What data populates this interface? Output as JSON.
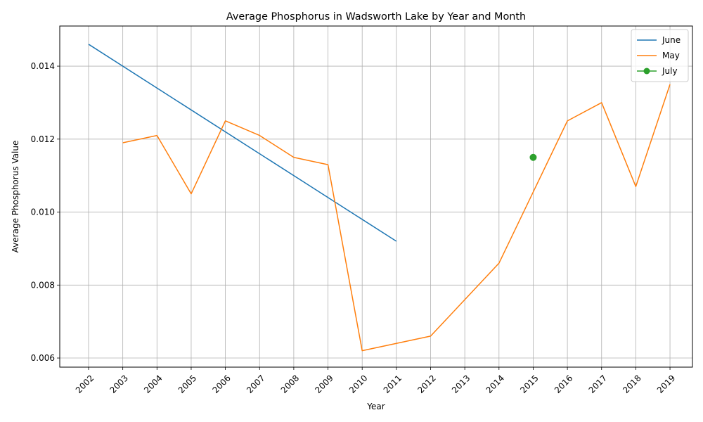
{
  "chart_data": {
    "type": "line",
    "title": "Average Phosphorus in Wadsworth Lake by Year and Month",
    "xlabel": "Year",
    "ylabel": "Average Phosphorus Value",
    "x_categories": [
      "2002",
      "2003",
      "2004",
      "2005",
      "2006",
      "2007",
      "2008",
      "2009",
      "2010",
      "2011",
      "2012",
      "2013",
      "2014",
      "2015",
      "2016",
      "2017",
      "2018",
      "2019"
    ],
    "ylim": [
      0.00575,
      0.0151
    ],
    "yticks": [
      "0.006",
      "0.008",
      "0.010",
      "0.012",
      "0.014"
    ],
    "ytick_values": [
      0.006,
      0.008,
      0.01,
      0.012,
      0.014
    ],
    "grid": true,
    "legend_position": "top-right",
    "series": [
      {
        "name": "June",
        "color": "#1f77b4",
        "marker": "none",
        "points": [
          [
            "2002",
            0.0146
          ],
          [
            "2011",
            0.0092
          ]
        ]
      },
      {
        "name": "May",
        "color": "#ff7f0e",
        "marker": "none",
        "points": [
          [
            "2003",
            0.0119
          ],
          [
            "2004",
            0.0121
          ],
          [
            "2005",
            0.0105
          ],
          [
            "2006",
            0.0125
          ],
          [
            "2007",
            0.0121
          ],
          [
            "2008",
            0.0115
          ],
          [
            "2009",
            0.0113
          ],
          [
            "2010",
            0.0062
          ],
          [
            "2012",
            0.0066
          ],
          [
            "2014",
            0.0086
          ],
          [
            "2016",
            0.0125
          ],
          [
            "2017",
            0.013
          ],
          [
            "2018",
            0.0107
          ],
          [
            "2019",
            0.0135
          ]
        ]
      },
      {
        "name": "July",
        "color": "#2ca02c",
        "marker": "circle",
        "points": [
          [
            "2015",
            0.0115
          ]
        ]
      }
    ]
  }
}
